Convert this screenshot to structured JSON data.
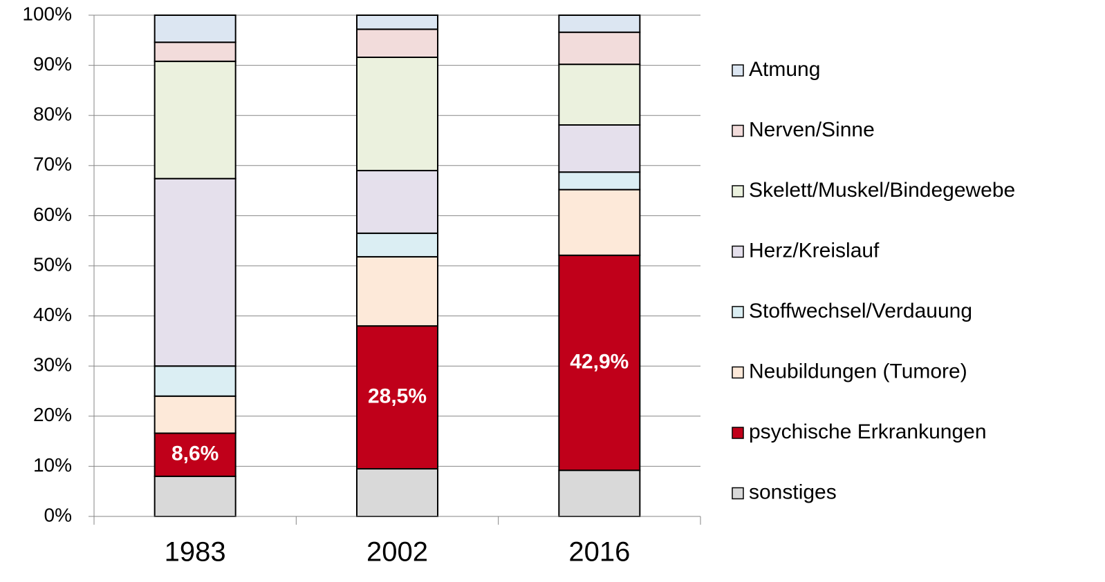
{
  "chart_data": {
    "type": "stacked-bar",
    "categories": [
      "1983",
      "2002",
      "2016"
    ],
    "ylim": [
      0,
      100
    ],
    "yticks": [
      {
        "value": 0,
        "label": "0%"
      },
      {
        "value": 10,
        "label": "10%"
      },
      {
        "value": 20,
        "label": "20%"
      },
      {
        "value": 30,
        "label": "30%"
      },
      {
        "value": 40,
        "label": "40%"
      },
      {
        "value": 50,
        "label": "50%"
      },
      {
        "value": 60,
        "label": "60%"
      },
      {
        "value": 70,
        "label": "70%"
      },
      {
        "value": 80,
        "label": "80%"
      },
      {
        "value": 90,
        "label": "90%"
      },
      {
        "value": 100,
        "label": "100%"
      }
    ],
    "grid": true,
    "legend": "right",
    "series": [
      {
        "name": "sonstiges",
        "color": "#d9d9d9",
        "values": [
          8.0,
          9.5,
          9.2
        ]
      },
      {
        "name": "psychische Erkrankungen",
        "color": "#c0001a",
        "values": [
          8.6,
          28.5,
          42.9
        ],
        "value_labels": [
          "8,6%",
          "28,5%",
          "42,9%"
        ]
      },
      {
        "name": "Neubildungen (Tumore)",
        "color": "#fde9d9",
        "values": [
          7.4,
          13.8,
          13.1
        ]
      },
      {
        "name": "Stoffwechsel/Verdauung",
        "color": "#dbeef3",
        "values": [
          6.0,
          4.7,
          3.5
        ]
      },
      {
        "name": "Herz/Kreislauf",
        "color": "#e5e0ec",
        "values": [
          37.4,
          12.5,
          9.4
        ]
      },
      {
        "name": "Skelett/Muskel/Bindegewebe",
        "color": "#ebf1de",
        "values": [
          23.4,
          22.6,
          12.1
        ]
      },
      {
        "name": "Nerven/Sinne",
        "color": "#f2dcdb",
        "values": [
          3.8,
          5.6,
          6.4
        ]
      },
      {
        "name": "Atmung",
        "color": "#dce6f2",
        "values": [
          5.4,
          2.8,
          3.4
        ]
      }
    ]
  }
}
